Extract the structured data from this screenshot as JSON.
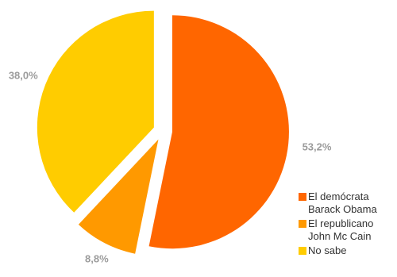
{
  "chart_data": {
    "type": "pie",
    "title": "",
    "categories": [
      "El demócrata\nBarack Obama",
      "El republicano\nJohn Mc Cain",
      "No sabe"
    ],
    "values": [
      53.2,
      8.8,
      38.0
    ],
    "data_labels": [
      "53,2%",
      "8,8%",
      "38,0%"
    ],
    "colors": [
      "#ff6600",
      "#ff9900",
      "#ffcc00"
    ],
    "exploded": true,
    "start_direction": "12 o'clock, clockwise",
    "legend_position": "bottom-right"
  }
}
